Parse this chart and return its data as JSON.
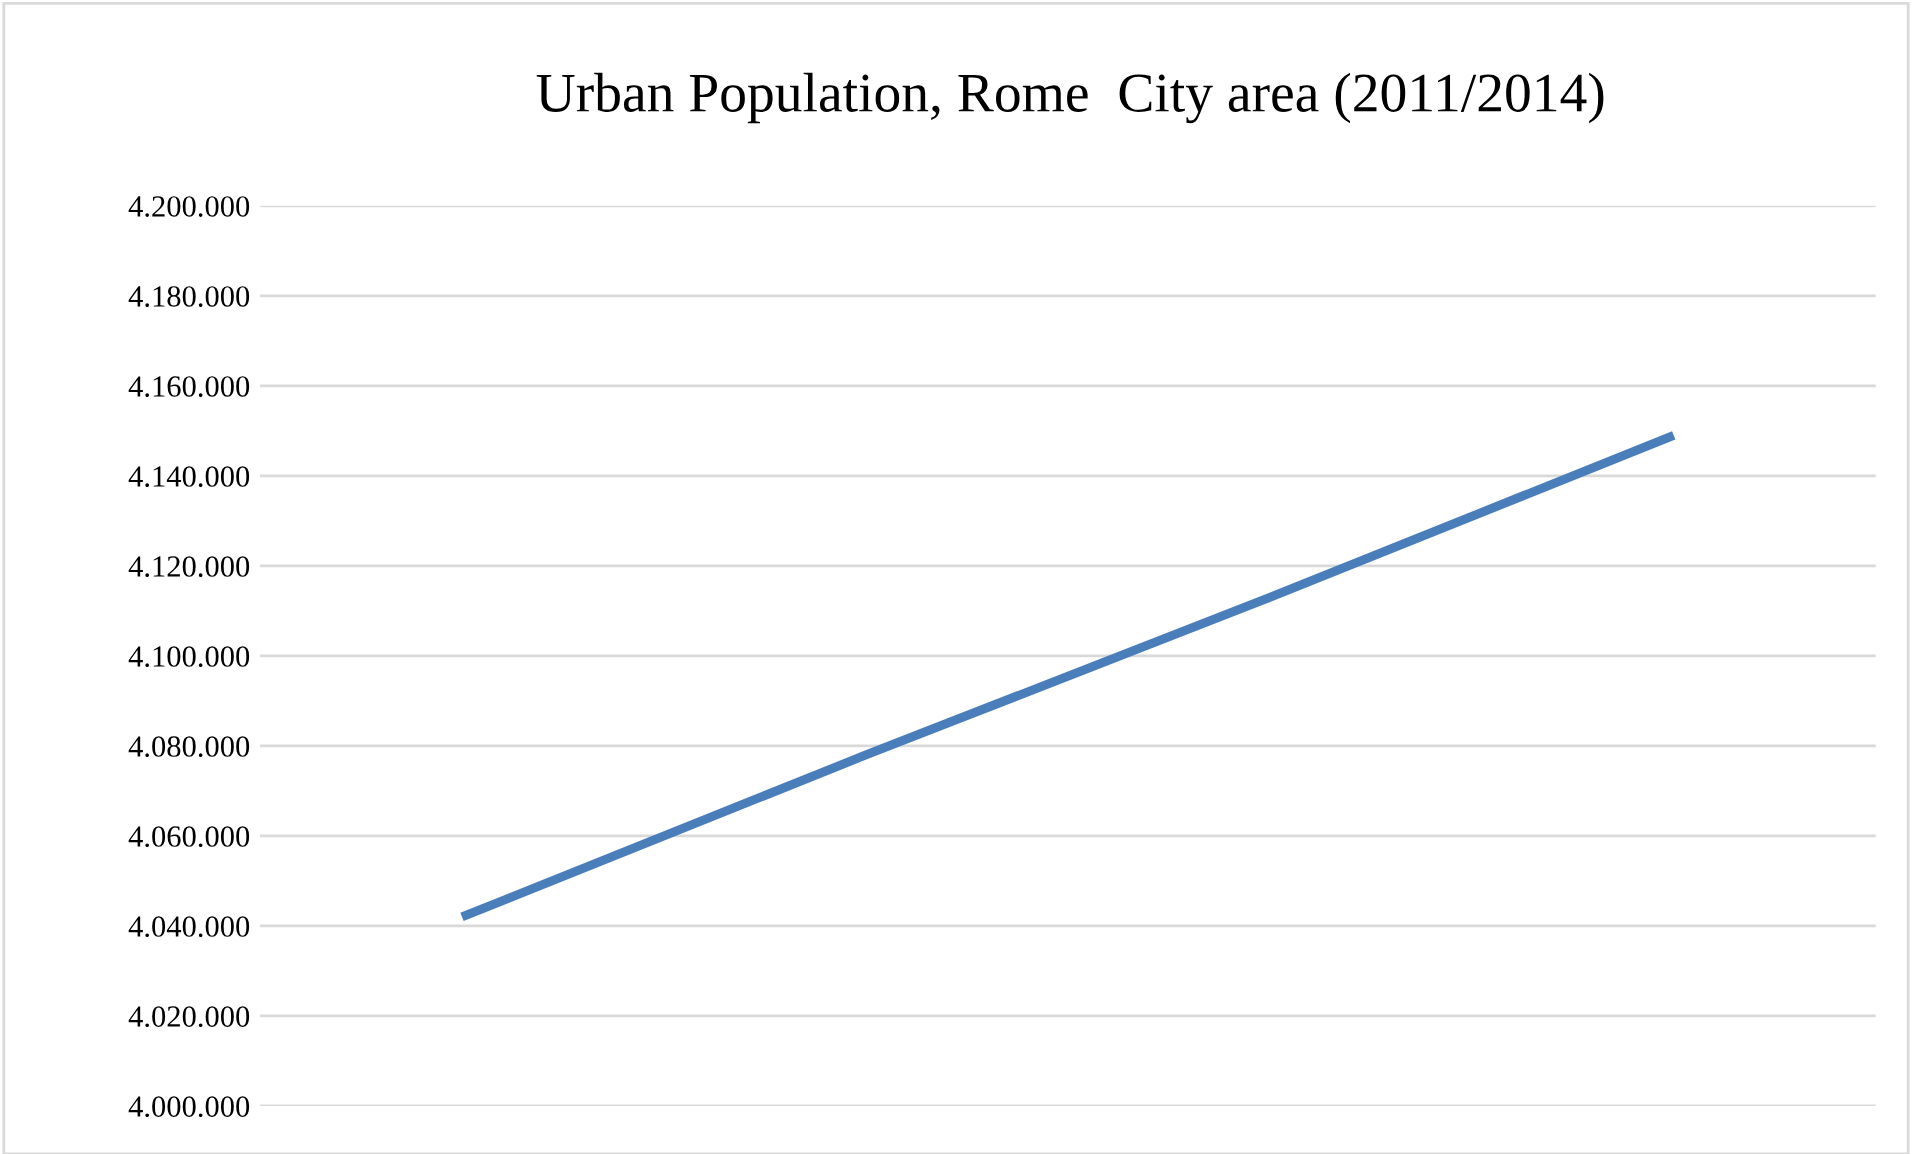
{
  "chart_data": {
    "type": "line",
    "title": "Urban Population, Rome  City area (2011/2014)",
    "categories": [
      null,
      null,
      null,
      null
    ],
    "series": [
      {
        "color": "#4a7ebb",
        "values": [
          4042000,
          4078000,
          4113000,
          4149000
        ]
      }
    ],
    "ylim": [
      4000000,
      4200000
    ],
    "yticks": [
      {
        "value": 4000000,
        "label": "4.000.000"
      },
      {
        "value": 4020000,
        "label": "4.020.000"
      },
      {
        "value": 4040000,
        "label": "4.040.000"
      },
      {
        "value": 4060000,
        "label": "4.060.000"
      },
      {
        "value": 4080000,
        "label": "4.080.000"
      },
      {
        "value": 4100000,
        "label": "4.100.000"
      },
      {
        "value": 4120000,
        "label": "4.120.000"
      },
      {
        "value": 4140000,
        "label": "4.140.000"
      },
      {
        "value": 4160000,
        "label": "4.160.000"
      },
      {
        "value": 4180000,
        "label": "4.180.000"
      },
      {
        "value": 4200000,
        "label": "4.200.000"
      }
    ],
    "grid": "y",
    "tick_labels": "y",
    "marker": "none",
    "line_style": "solid"
  }
}
